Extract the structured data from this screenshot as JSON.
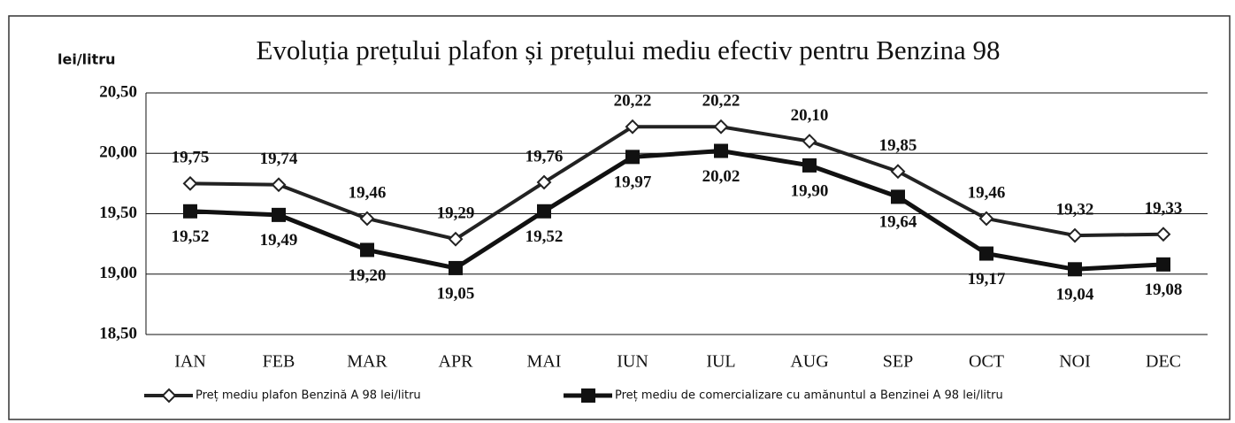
{
  "chart_data": {
    "type": "line",
    "title": "Evoluția prețului plafon și prețului mediu efectiv pentru Benzina 98",
    "y_label": "lei/litru",
    "categories": [
      "IAN",
      "FEB",
      "MAR",
      "APR",
      "MAI",
      "IUN",
      "IUL",
      "AUG",
      "SEP",
      "OCT",
      "NOI",
      "DEC"
    ],
    "series": [
      {
        "name": "Preț mediu plafon Benzină A 98  lei/litru",
        "color": "#222222",
        "marker": "diamond",
        "values": [
          19.75,
          19.74,
          19.46,
          19.29,
          19.76,
          20.22,
          20.22,
          20.1,
          19.85,
          19.46,
          19.32,
          19.33
        ],
        "value_labels": [
          "19,75",
          "19,74",
          "19,46",
          "19,29",
          "19,76",
          "20,22",
          "20,22",
          "20,10",
          "19,85",
          "19,46",
          "19,32",
          "19,33"
        ]
      },
      {
        "name": "Preț mediu de comercializare cu amănuntul a Benzinei A 98 lei/litru",
        "color": "#111111",
        "marker": "square",
        "values": [
          19.52,
          19.49,
          19.2,
          19.05,
          19.52,
          19.97,
          20.02,
          19.9,
          19.64,
          19.17,
          19.04,
          19.08
        ],
        "value_labels": [
          "19,52",
          "19,49",
          "19,20",
          "19,05",
          "19,52",
          "19,97",
          "20,02",
          "19,90",
          "19,64",
          "19,17",
          "19,04",
          "19,08"
        ]
      }
    ],
    "ylim": [
      18.5,
      20.5
    ],
    "yticks": [
      {
        "value": 18.5,
        "label": "18,50"
      },
      {
        "value": 19,
        "label": "19,00"
      },
      {
        "value": 19.5,
        "label": "19,50"
      },
      {
        "value": 20,
        "label": "20,00"
      },
      {
        "value": 20.5,
        "label": "20,50"
      }
    ],
    "grid": true
  }
}
